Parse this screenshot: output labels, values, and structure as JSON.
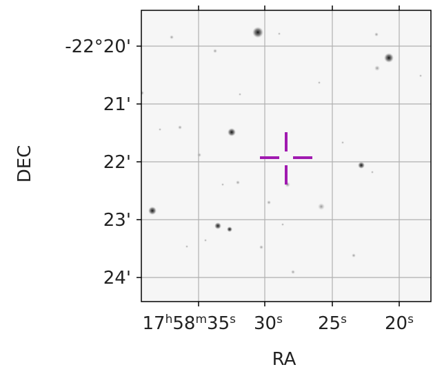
{
  "sky_image": {
    "axes": {
      "xlabel": "RA",
      "ylabel": "DEC"
    },
    "dec_ticks": [
      {
        "label": "-22°20'",
        "arcmin": 20
      },
      {
        "label": "21'",
        "arcmin": 21
      },
      {
        "label": "22'",
        "arcmin": 22
      },
      {
        "label": "23'",
        "arcmin": 23
      },
      {
        "label": "24'",
        "arcmin": 24
      }
    ],
    "ra_ticks": [
      {
        "h": "17",
        "m": "58",
        "s": "35",
        "seconds": 35
      },
      {
        "s": "30",
        "seconds": 30
      },
      {
        "s": "25",
        "seconds": 25
      },
      {
        "s": "20",
        "seconds": 20
      }
    ],
    "target_marker": {
      "color": "#a01ab0",
      "shape": "crosshair"
    },
    "grid": true,
    "image_style": "grayscale-inverted star field",
    "colors": {
      "background": "#f6f6f6",
      "grid": "#b0b0b0",
      "frame": "#000000"
    }
  }
}
